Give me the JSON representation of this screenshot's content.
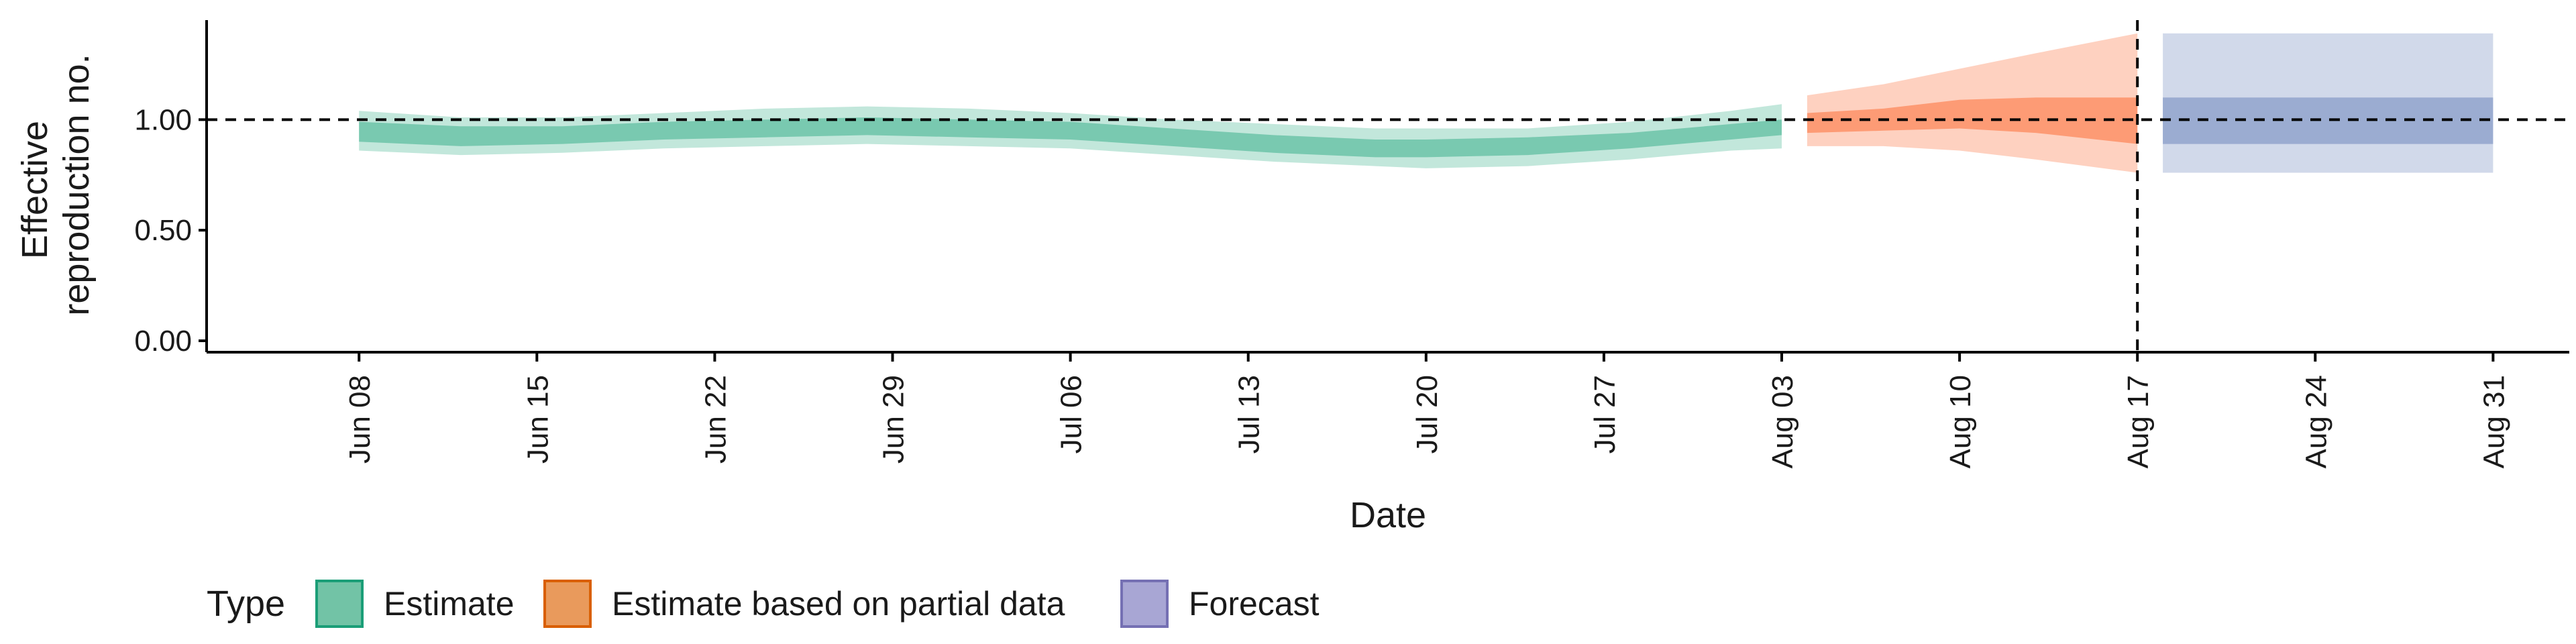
{
  "chart_data": {
    "type": "area",
    "xlabel": "Date",
    "ylabel_lines": [
      "Effective",
      "reproduction no."
    ],
    "ylim": [
      0,
      1.45
    ],
    "yticks": [
      {
        "value": 0,
        "label": "0.00"
      },
      {
        "value": 0.5,
        "label": "0.50"
      },
      {
        "value": 1.0,
        "label": "1.00"
      }
    ],
    "xlim": [
      "2020-06-02",
      "2020-09-03"
    ],
    "xticks": [
      {
        "date": "2020-06-08",
        "label": "Jun 08"
      },
      {
        "date": "2020-06-15",
        "label": "Jun 15"
      },
      {
        "date": "2020-06-22",
        "label": "Jun 22"
      },
      {
        "date": "2020-06-29",
        "label": "Jun 29"
      },
      {
        "date": "2020-07-06",
        "label": "Jul 06"
      },
      {
        "date": "2020-07-13",
        "label": "Jul 13"
      },
      {
        "date": "2020-07-20",
        "label": "Jul 20"
      },
      {
        "date": "2020-07-27",
        "label": "Jul 27"
      },
      {
        "date": "2020-08-03",
        "label": "Aug 03"
      },
      {
        "date": "2020-08-10",
        "label": "Aug 10"
      },
      {
        "date": "2020-08-17",
        "label": "Aug 17"
      },
      {
        "date": "2020-08-24",
        "label": "Aug 24"
      },
      {
        "date": "2020-08-31",
        "label": "Aug 31"
      }
    ],
    "reference_line_y": 1.0,
    "reference_line_date": "2020-08-17",
    "series": [
      {
        "name": "Estimate",
        "color": "#66c2a5",
        "points": [
          {
            "date": "2020-06-08",
            "lo90": 0.86,
            "lo50": 0.9,
            "hi50": 0.99,
            "hi90": 1.04
          },
          {
            "date": "2020-06-12",
            "lo90": 0.84,
            "lo50": 0.88,
            "hi50": 0.97,
            "hi90": 1.01
          },
          {
            "date": "2020-06-16",
            "lo90": 0.85,
            "lo50": 0.89,
            "hi50": 0.97,
            "hi90": 1.01
          },
          {
            "date": "2020-06-20",
            "lo90": 0.87,
            "lo50": 0.91,
            "hi50": 0.99,
            "hi90": 1.03
          },
          {
            "date": "2020-06-24",
            "lo90": 0.88,
            "lo50": 0.92,
            "hi50": 1.0,
            "hi90": 1.05
          },
          {
            "date": "2020-06-28",
            "lo90": 0.89,
            "lo50": 0.93,
            "hi50": 1.01,
            "hi90": 1.06
          },
          {
            "date": "2020-07-02",
            "lo90": 0.88,
            "lo50": 0.92,
            "hi50": 1.0,
            "hi90": 1.05
          },
          {
            "date": "2020-07-06",
            "lo90": 0.87,
            "lo50": 0.91,
            "hi50": 0.99,
            "hi90": 1.03
          },
          {
            "date": "2020-07-10",
            "lo90": 0.84,
            "lo50": 0.88,
            "hi50": 0.96,
            "hi90": 1.0
          },
          {
            "date": "2020-07-14",
            "lo90": 0.81,
            "lo50": 0.85,
            "hi50": 0.93,
            "hi90": 0.98
          },
          {
            "date": "2020-07-18",
            "lo90": 0.79,
            "lo50": 0.83,
            "hi50": 0.91,
            "hi90": 0.96
          },
          {
            "date": "2020-07-20",
            "lo90": 0.78,
            "lo50": 0.83,
            "hi50": 0.91,
            "hi90": 0.96
          },
          {
            "date": "2020-07-24",
            "lo90": 0.79,
            "lo50": 0.84,
            "hi50": 0.92,
            "hi90": 0.96
          },
          {
            "date": "2020-07-28",
            "lo90": 0.82,
            "lo50": 0.87,
            "hi50": 0.94,
            "hi90": 0.99
          },
          {
            "date": "2020-08-01",
            "lo90": 0.86,
            "lo50": 0.91,
            "hi50": 0.98,
            "hi90": 1.04
          },
          {
            "date": "2020-08-03",
            "lo90": 0.87,
            "lo50": 0.93,
            "hi50": 1.0,
            "hi90": 1.07
          }
        ]
      },
      {
        "name": "Estimate based on partial data",
        "color": "#fc8d62",
        "points": [
          {
            "date": "2020-08-04",
            "lo90": 0.88,
            "lo50": 0.94,
            "hi50": 1.03,
            "hi90": 1.11
          },
          {
            "date": "2020-08-07",
            "lo90": 0.88,
            "lo50": 0.95,
            "hi50": 1.05,
            "hi90": 1.16
          },
          {
            "date": "2020-08-10",
            "lo90": 0.86,
            "lo50": 0.96,
            "hi50": 1.09,
            "hi90": 1.23
          },
          {
            "date": "2020-08-13",
            "lo90": 0.82,
            "lo50": 0.94,
            "hi50": 1.1,
            "hi90": 1.3
          },
          {
            "date": "2020-08-17",
            "lo90": 0.76,
            "lo50": 0.89,
            "hi50": 1.1,
            "hi90": 1.39
          }
        ]
      },
      {
        "name": "Forecast",
        "color": "#8da0cb",
        "points": [
          {
            "date": "2020-08-18",
            "lo90": 0.76,
            "lo50": 0.89,
            "hi50": 1.1,
            "hi90": 1.39
          },
          {
            "date": "2020-08-31",
            "lo90": 0.76,
            "lo50": 0.89,
            "hi50": 1.1,
            "hi90": 1.39
          }
        ]
      }
    ],
    "legend": {
      "title": "Type",
      "position": "bottom-left",
      "items": [
        {
          "label": "Estimate",
          "fill": "#72c3a6",
          "stroke": "#1b9e77"
        },
        {
          "label": "Estimate based on partial data",
          "fill": "#e99a5c",
          "stroke": "#d95f02"
        },
        {
          "label": "Forecast",
          "fill": "#a8a6d4",
          "stroke": "#7570b3"
        }
      ]
    }
  }
}
